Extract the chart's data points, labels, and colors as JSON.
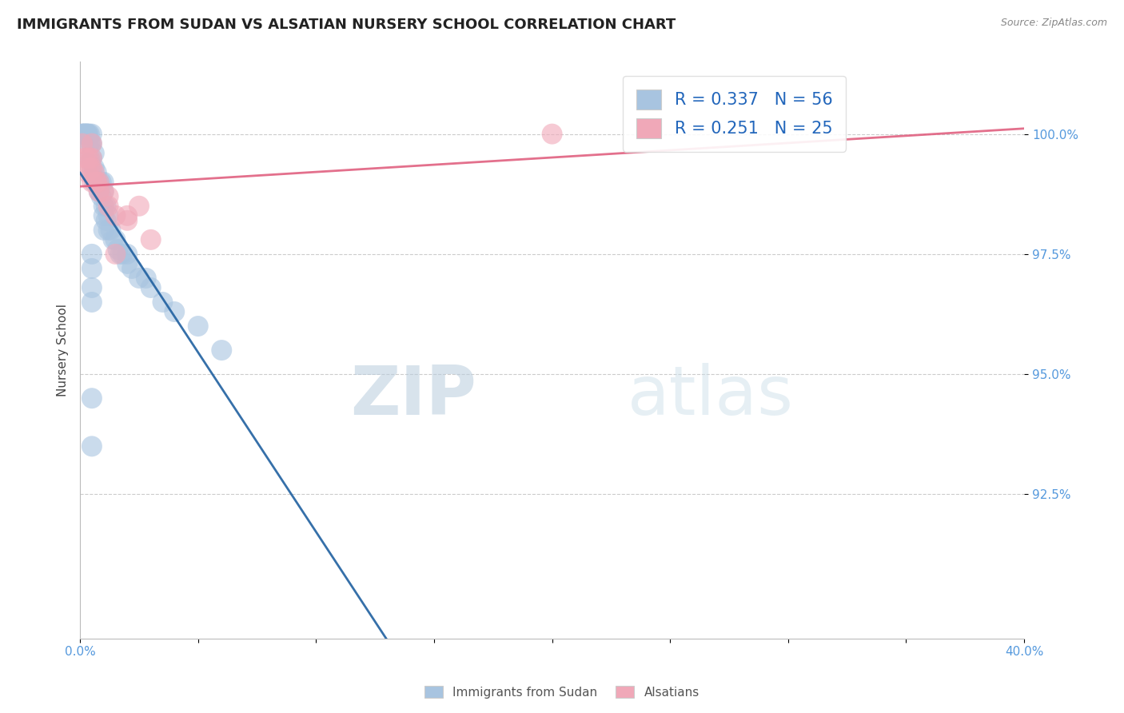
{
  "title": "IMMIGRANTS FROM SUDAN VS ALSATIAN NURSERY SCHOOL CORRELATION CHART",
  "source": "Source: ZipAtlas.com",
  "ylabel": "Nursery School",
  "R_blue": 0.337,
  "N_blue": 56,
  "R_pink": 0.251,
  "N_pink": 25,
  "blue_color": "#a8c4e0",
  "pink_color": "#f0a8b8",
  "blue_line_color": "#2060a0",
  "pink_line_color": "#e06080",
  "watermark_zip": "ZIP",
  "watermark_atlas": "atlas",
  "title_fontsize": 13,
  "background_color": "#ffffff",
  "xlim": [
    0.0,
    40.0
  ],
  "ylim": [
    89.5,
    101.5
  ],
  "ytick_vals": [
    92.5,
    95.0,
    97.5,
    100.0
  ],
  "legend_bottom": [
    "Immigrants from Sudan",
    "Alsatians"
  ],
  "blue_points_x": [
    0.1,
    0.1,
    0.15,
    0.2,
    0.2,
    0.25,
    0.3,
    0.3,
    0.35,
    0.4,
    0.4,
    0.4,
    0.45,
    0.5,
    0.5,
    0.5,
    0.5,
    0.6,
    0.6,
    0.6,
    0.7,
    0.8,
    0.8,
    0.9,
    0.9,
    1.0,
    1.0,
    1.0,
    1.0,
    1.0,
    1.1,
    1.1,
    1.2,
    1.2,
    1.3,
    1.4,
    1.5,
    1.6,
    1.7,
    1.8,
    2.0,
    2.0,
    2.2,
    2.5,
    2.8,
    3.0,
    3.5,
    4.0,
    5.0,
    6.0,
    0.5,
    0.5,
    0.5,
    0.5,
    0.5,
    0.5
  ],
  "blue_points_y": [
    100.0,
    100.0,
    100.0,
    100.0,
    100.0,
    100.0,
    100.0,
    100.0,
    100.0,
    100.0,
    99.8,
    99.5,
    99.8,
    100.0,
    99.8,
    99.5,
    99.2,
    99.6,
    99.3,
    99.0,
    99.2,
    99.0,
    98.8,
    99.0,
    98.7,
    99.0,
    98.8,
    98.5,
    98.3,
    98.0,
    98.5,
    98.2,
    98.3,
    98.0,
    98.0,
    97.8,
    97.8,
    97.6,
    97.5,
    97.5,
    97.5,
    97.3,
    97.2,
    97.0,
    97.0,
    96.8,
    96.5,
    96.3,
    96.0,
    95.5,
    97.5,
    97.2,
    96.8,
    96.5,
    94.5,
    93.5
  ],
  "pink_points_x": [
    0.1,
    0.2,
    0.3,
    0.4,
    0.5,
    0.5,
    0.5,
    0.6,
    0.7,
    0.8,
    1.0,
    1.2,
    1.5,
    2.0,
    2.5,
    3.0,
    0.3,
    0.5,
    0.8,
    1.2,
    2.0,
    0.4,
    0.7,
    1.5,
    20.0
  ],
  "pink_points_y": [
    99.8,
    99.5,
    99.2,
    99.5,
    99.8,
    99.5,
    99.0,
    99.2,
    99.0,
    98.8,
    98.8,
    98.5,
    98.3,
    98.2,
    98.5,
    97.8,
    99.5,
    99.3,
    99.0,
    98.7,
    98.3,
    99.3,
    99.0,
    97.5,
    100.0
  ]
}
